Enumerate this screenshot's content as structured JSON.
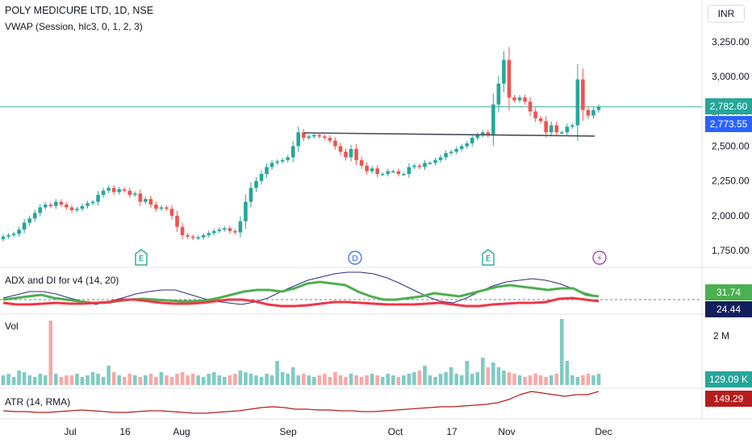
{
  "header": {
    "symbol_title": "POLY MEDICURE LTD, 1D, NSE",
    "vwap_label": "VWAP (Session, hlc3, 0, 1, 2, 3)",
    "currency": "INR"
  },
  "price_tags": {
    "last": "2,782.60",
    "vwap": "2,773.55"
  },
  "events": [
    {
      "label": "E",
      "kind": "earnings"
    },
    {
      "label": "D",
      "kind": "dividend"
    },
    {
      "label": "E",
      "kind": "earnings"
    },
    {
      "label": "⚡",
      "kind": "split"
    }
  ],
  "adx": {
    "label": "ADX and DI for v4 (14, 20)",
    "value_green": "31.74",
    "value_blue": "24.44"
  },
  "volume": {
    "label": "Vol",
    "scale_label": "2 M",
    "value": "129.09 K"
  },
  "atr": {
    "label": "ATR (14, RMA)",
    "value": "149.29"
  },
  "colors": {
    "up": "#26a69a",
    "down": "#ef5350",
    "adx_green": "#4caf50",
    "adx_red": "#f23645",
    "adx_line": "#2a2e7b",
    "price_line": "#26a69a",
    "vwap_tag": "#2962ff",
    "atr_line": "#b71c1c"
  },
  "chart_data": {
    "type": "candlestick",
    "y_ticks": [
      "3,250.00",
      "3,000.00",
      "2,750.00",
      "2,500.00",
      "2,250.00",
      "2,000.00",
      "1,750.00"
    ],
    "ylim": [
      1750,
      3250
    ],
    "x_ticks": [
      "Jul",
      "16",
      "Aug",
      "Sep",
      "Oct",
      "17",
      "Nov",
      "Dec"
    ],
    "resistance_level": 2590,
    "close_series": [
      1850,
      1860,
      1870,
      1900,
      1950,
      1980,
      2020,
      2060,
      2080,
      2070,
      2100,
      2080,
      2060,
      2040,
      2050,
      2070,
      2090,
      2100,
      2150,
      2180,
      2200,
      2170,
      2190,
      2180,
      2150,
      2160,
      2100,
      2120,
      2080,
      2050,
      2060,
      2050,
      2000,
      1920,
      1860,
      1850,
      1840,
      1845,
      1860,
      1875,
      1890,
      1900,
      1910,
      1890,
      1880,
      1960,
      2100,
      2200,
      2250,
      2300,
      2350,
      2380,
      2390,
      2400,
      2420,
      2500,
      2600,
      2560,
      2570,
      2580,
      2570,
      2560,
      2540,
      2500,
      2460,
      2420,
      2480,
      2400,
      2360,
      2320,
      2340,
      2300,
      2300,
      2320,
      2320,
      2300,
      2300,
      2350,
      2360,
      2350,
      2380,
      2380,
      2400,
      2420,
      2450,
      2460,
      2480,
      2500,
      2520,
      2560,
      2580,
      2600,
      2580,
      2800,
      2950,
      3120,
      2850,
      2830,
      2850,
      2820,
      2750,
      2700,
      2680,
      2600,
      2650,
      2600,
      2600,
      2640,
      2650,
      2980,
      2760,
      2720,
      2760,
      2782.6
    ]
  }
}
